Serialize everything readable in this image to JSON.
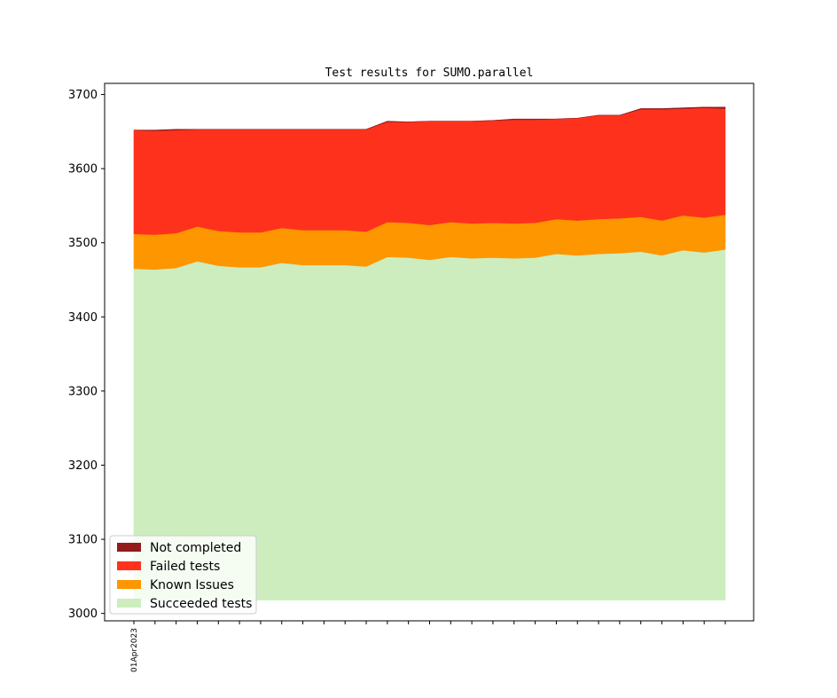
{
  "chart_data": {
    "type": "area",
    "stacked": true,
    "title": "Test results for SUMO.parallel",
    "xlabel": "",
    "ylabel": "",
    "ylim": [
      2990,
      3715
    ],
    "yticks": [
      3000,
      3100,
      3200,
      3300,
      3400,
      3500,
      3600,
      3700
    ],
    "baseline": 3018,
    "x_count": 29,
    "x_tick_labels": [
      {
        "index": 0,
        "label": "01Apr2023"
      }
    ],
    "legend_position": "lower-left",
    "series": [
      {
        "name": "Succeeded tests",
        "color": "#cdedbf",
        "top": [
          3465,
          3464,
          3466,
          3475,
          3469,
          3467,
          3467,
          3473,
          3470,
          3470,
          3470,
          3468,
          3481,
          3480,
          3477,
          3481,
          3479,
          3480,
          3479,
          3480,
          3485,
          3483,
          3485,
          3486,
          3488,
          3483,
          3490,
          3487,
          3491
        ]
      },
      {
        "name": "Known Issues",
        "color": "#fe9600",
        "top": [
          3512,
          3511,
          3513,
          3522,
          3516,
          3514,
          3514,
          3520,
          3517,
          3517,
          3517,
          3515,
          3528,
          3527,
          3524,
          3528,
          3526,
          3527,
          3526,
          3527,
          3532,
          3530,
          3532,
          3533,
          3535,
          3530,
          3537,
          3534,
          3538
        ]
      },
      {
        "name": "Failed tests",
        "color": "#fe321c",
        "top": [
          3652,
          3651,
          3652,
          3653,
          3653,
          3653,
          3653,
          3653,
          3653,
          3653,
          3653,
          3653,
          3663,
          3663,
          3664,
          3664,
          3664,
          3665,
          3666,
          3666,
          3667,
          3668,
          3672,
          3672,
          3680,
          3680,
          3681,
          3682,
          3681
        ]
      },
      {
        "name": "Not completed",
        "color": "#931a1d",
        "top": [
          3652,
          3652,
          3653,
          3653,
          3653,
          3653,
          3653,
          3653,
          3653,
          3653,
          3653,
          3653,
          3664,
          3663,
          3664,
          3664,
          3664,
          3665,
          3667,
          3667,
          3667,
          3668,
          3672,
          3672,
          3681,
          3681,
          3682,
          3683,
          3683
        ]
      }
    ],
    "legend_order": [
      "Not completed",
      "Failed tests",
      "Known Issues",
      "Succeeded tests"
    ]
  }
}
